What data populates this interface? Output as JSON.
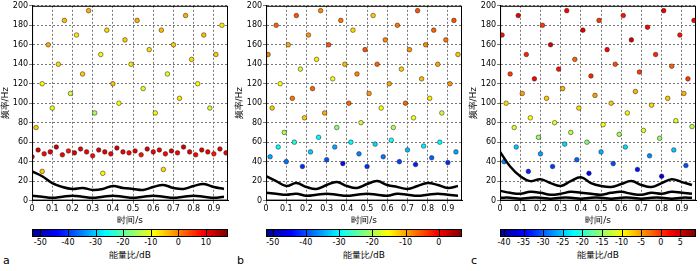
{
  "chart_data": [
    {
      "type": "scatter",
      "label": "a",
      "xlabel": "时间/s",
      "ylabel": "频率/Hz",
      "grid": true,
      "xlim": [
        0,
        0.97
      ],
      "xticks": [
        0,
        0.1,
        0.2,
        0.3,
        0.4,
        0.5,
        0.6,
        0.7,
        0.8,
        0.9
      ],
      "ylim": [
        0,
        200
      ],
      "yticks": [
        0,
        20,
        40,
        60,
        80,
        100,
        120,
        140,
        160,
        180,
        200
      ],
      "colorbar": {
        "label": "能量比/dB",
        "range": [
          -53,
          18
        ],
        "ticks": [
          -50,
          -40,
          -30,
          -20,
          -10,
          0,
          10
        ]
      },
      "points": {
        "x": [
          0,
          0.03,
          0.06,
          0.09,
          0.12,
          0.15,
          0.18,
          0.21,
          0.24,
          0.27,
          0.3,
          0.33,
          0.36,
          0.39,
          0.42,
          0.45,
          0.48,
          0.51,
          0.54,
          0.57,
          0.6,
          0.63,
          0.66,
          0.69,
          0.72,
          0.75,
          0.78,
          0.81,
          0.84,
          0.87,
          0.9,
          0.93,
          0.96,
          0.02,
          0.05,
          0.08,
          0.1,
          0.13,
          0.16,
          0.19,
          0.22,
          0.25,
          0.28,
          0.31,
          0.34,
          0.37,
          0.4,
          0.43,
          0.46,
          0.49,
          0.52,
          0.55,
          0.58,
          0.61,
          0.64,
          0.67,
          0.7,
          0.73,
          0.76,
          0.79,
          0.82,
          0.85,
          0.88,
          0.91,
          0.94,
          0.05,
          0.35,
          0.65
        ],
        "y": [
          45,
          52,
          48,
          50,
          55,
          47,
          51,
          49,
          53,
          50,
          46,
          52,
          50,
          48,
          54,
          50,
          49,
          51,
          47,
          53,
          50,
          52,
          48,
          51,
          49,
          55,
          50,
          47,
          52,
          50,
          48,
          53,
          49,
          75,
          120,
          160,
          95,
          140,
          185,
          110,
          170,
          130,
          195,
          90,
          150,
          175,
          120,
          100,
          165,
          140,
          185,
          115,
          155,
          90,
          175,
          130,
          160,
          105,
          190,
          145,
          120,
          170,
          95,
          150,
          180,
          30,
          28,
          32
        ],
        "values": [
          10,
          12,
          9,
          11,
          13,
          10,
          8,
          12,
          11,
          10,
          9,
          12,
          11,
          10,
          13,
          10,
          9,
          11,
          8,
          12,
          10,
          11,
          9,
          12,
          10,
          13,
          11,
          9,
          12,
          10,
          8,
          11,
          10,
          -5,
          -8,
          -3,
          -10,
          -6,
          -4,
          -12,
          -7,
          -5,
          -3,
          -15,
          -8,
          -6,
          -4,
          -9,
          -5,
          -7,
          -3,
          -11,
          -6,
          -8,
          -4,
          -10,
          -5,
          -7,
          -3,
          -6,
          -9,
          -4,
          -12,
          -5,
          -7,
          -5,
          -8,
          -6
        ]
      },
      "lines": [
        {
          "color": "#000000",
          "x": [
            0,
            0.05,
            0.1,
            0.15,
            0.2,
            0.25,
            0.3,
            0.35,
            0.4,
            0.45,
            0.5,
            0.55,
            0.6,
            0.65,
            0.7,
            0.75,
            0.8,
            0.85,
            0.9,
            0.95
          ],
          "y": [
            30,
            25,
            18,
            14,
            12,
            13,
            11,
            12,
            15,
            13,
            12,
            11,
            14,
            16,
            13,
            12,
            15,
            17,
            14,
            12
          ]
        },
        {
          "color": "#000000",
          "x": [
            0,
            0.05,
            0.1,
            0.15,
            0.2,
            0.25,
            0.3,
            0.35,
            0.4,
            0.45,
            0.5,
            0.55,
            0.6,
            0.65,
            0.7,
            0.75,
            0.8,
            0.85,
            0.9,
            0.95
          ],
          "y": [
            5,
            4,
            3,
            4,
            5,
            4,
            3,
            4,
            5,
            4,
            3,
            4,
            5,
            4,
            3,
            4,
            5,
            4,
            3,
            4
          ]
        }
      ]
    },
    {
      "type": "scatter",
      "label": "b",
      "xlabel": "时间/s",
      "ylabel": "频率/Hz",
      "grid": true,
      "xlim": [
        0,
        0.97
      ],
      "xticks": [
        0,
        0.1,
        0.2,
        0.3,
        0.4,
        0.5,
        0.6,
        0.7,
        0.8,
        0.9
      ],
      "ylim": [
        0,
        200
      ],
      "yticks": [
        0,
        20,
        40,
        60,
        80,
        100,
        120,
        140,
        160,
        180,
        200
      ],
      "colorbar": {
        "label": "能量比/dB",
        "range": [
          -52,
          7
        ],
        "ticks": [
          -50,
          -40,
          -30,
          -20,
          -10,
          0
        ]
      },
      "points": {
        "x": [
          0.01,
          0.03,
          0.05,
          0.07,
          0.09,
          0.11,
          0.13,
          0.15,
          0.17,
          0.19,
          0.21,
          0.23,
          0.25,
          0.27,
          0.29,
          0.31,
          0.33,
          0.35,
          0.37,
          0.39,
          0.41,
          0.43,
          0.45,
          0.47,
          0.49,
          0.51,
          0.53,
          0.55,
          0.57,
          0.59,
          0.61,
          0.63,
          0.65,
          0.67,
          0.69,
          0.71,
          0.73,
          0.75,
          0.77,
          0.79,
          0.81,
          0.83,
          0.85,
          0.87,
          0.89,
          0.91,
          0.93,
          0.95,
          0.02,
          0.06,
          0.1,
          0.14,
          0.18,
          0.22,
          0.26,
          0.3,
          0.34,
          0.38,
          0.42,
          0.46,
          0.5,
          0.54,
          0.58,
          0.62,
          0.66,
          0.7,
          0.74,
          0.78,
          0.82,
          0.86,
          0.9,
          0.94
        ],
        "y": [
          150,
          95,
          180,
          120,
          70,
          160,
          105,
          190,
          135,
          85,
          170,
          115,
          145,
          195,
          90,
          160,
          125,
          75,
          185,
          140,
          100,
          175,
          130,
          80,
          155,
          110,
          190,
          140,
          95,
          165,
          120,
          75,
          180,
          135,
          100,
          155,
          85,
          195,
          125,
          160,
          105,
          175,
          140,
          90,
          165,
          120,
          185,
          150,
          45,
          55,
          40,
          60,
          35,
          50,
          65,
          42,
          55,
          38,
          60,
          48,
          35,
          58,
          45,
          62,
          40,
          52,
          37,
          56,
          44,
          60,
          39,
          50
        ],
        "values": [
          -8,
          -12,
          -6,
          -15,
          -20,
          -10,
          -7,
          -5,
          -18,
          -12,
          -9,
          -6,
          -14,
          -8,
          -10,
          -5,
          -16,
          -22,
          -7,
          -11,
          -6,
          -13,
          -8,
          -18,
          -5,
          -9,
          -12,
          -6,
          -15,
          -8,
          -10,
          -20,
          -7,
          -12,
          -6,
          -9,
          -16,
          -5,
          -11,
          -8,
          -14,
          -6,
          -10,
          -18,
          -7,
          -9,
          -5,
          -12,
          -35,
          -30,
          -38,
          -28,
          -42,
          -33,
          -30,
          -40,
          -35,
          -44,
          -30,
          -37,
          -42,
          -32,
          -38,
          -29,
          -41,
          -34,
          -43,
          -31,
          -39,
          -30,
          -42,
          -35
        ]
      },
      "lines": [
        {
          "color": "#000000",
          "x": [
            0,
            0.05,
            0.1,
            0.15,
            0.2,
            0.25,
            0.3,
            0.35,
            0.4,
            0.45,
            0.5,
            0.55,
            0.6,
            0.65,
            0.7,
            0.75,
            0.8,
            0.85,
            0.9,
            0.95
          ],
          "y": [
            25,
            20,
            15,
            18,
            14,
            12,
            16,
            19,
            15,
            13,
            17,
            20,
            16,
            14,
            12,
            15,
            18,
            16,
            13,
            15
          ]
        },
        {
          "color": "#000000",
          "x": [
            0,
            0.05,
            0.1,
            0.15,
            0.2,
            0.25,
            0.3,
            0.35,
            0.4,
            0.45,
            0.5,
            0.55,
            0.6,
            0.65,
            0.7,
            0.75,
            0.8,
            0.85,
            0.9,
            0.95
          ],
          "y": [
            8,
            7,
            6,
            7,
            5,
            6,
            7,
            6,
            5,
            6,
            7,
            6,
            5,
            7,
            6,
            5,
            6,
            7,
            6,
            5
          ]
        }
      ]
    },
    {
      "type": "scatter",
      "label": "c",
      "xlabel": "时间/s",
      "ylabel": "频率/Hz",
      "grid": true,
      "xlim": [
        0,
        0.97
      ],
      "xticks": [
        0,
        0.1,
        0.2,
        0.3,
        0.4,
        0.5,
        0.6,
        0.7,
        0.8,
        0.9
      ],
      "ylim": [
        0,
        200
      ],
      "yticks": [
        0,
        20,
        40,
        60,
        80,
        100,
        120,
        140,
        160,
        180,
        200
      ],
      "colorbar": {
        "label": "能量比/dB",
        "range": [
          -41,
          9
        ],
        "ticks": [
          -40,
          -35,
          -30,
          -25,
          -20,
          -15,
          -10,
          -5,
          0,
          5
        ]
      },
      "points": {
        "x": [
          0.01,
          0.05,
          0.09,
          0.13,
          0.17,
          0.21,
          0.25,
          0.29,
          0.33,
          0.37,
          0.41,
          0.45,
          0.49,
          0.53,
          0.57,
          0.61,
          0.65,
          0.69,
          0.73,
          0.77,
          0.81,
          0.85,
          0.89,
          0.93,
          0.96,
          0.03,
          0.07,
          0.11,
          0.15,
          0.19,
          0.23,
          0.27,
          0.31,
          0.35,
          0.39,
          0.43,
          0.47,
          0.51,
          0.55,
          0.59,
          0.63,
          0.67,
          0.71,
          0.75,
          0.79,
          0.83,
          0.87,
          0.91,
          0.95,
          0.02,
          0.08,
          0.14,
          0.2,
          0.26,
          0.32,
          0.38,
          0.44,
          0.5,
          0.56,
          0.62,
          0.68,
          0.74,
          0.8,
          0.86,
          0.92
        ],
        "y": [
          170,
          130,
          190,
          150,
          125,
          180,
          160,
          135,
          195,
          145,
          175,
          128,
          185,
          155,
          140,
          190,
          165,
          132,
          178,
          150,
          195,
          138,
          170,
          125,
          185,
          100,
          75,
          110,
          85,
          65,
          105,
          80,
          115,
          70,
          95,
          60,
          108,
          78,
          100,
          68,
          90,
          112,
          72,
          98,
          64,
          105,
          82,
          110,
          76,
          40,
          55,
          30,
          48,
          35,
          58,
          42,
          28,
          50,
          38,
          55,
          32,
          46,
          25,
          52,
          36
        ],
        "values": [
          2,
          0,
          4,
          1,
          3,
          0,
          5,
          2,
          3,
          -2,
          4,
          1,
          0,
          3,
          -1,
          2,
          5,
          0,
          3,
          1,
          4,
          -2,
          2,
          0,
          3,
          -8,
          -12,
          -5,
          -10,
          -15,
          -7,
          -11,
          -6,
          -13,
          -8,
          -16,
          -5,
          -10,
          -7,
          -14,
          -9,
          -6,
          -12,
          -8,
          -15,
          -7,
          -11,
          -6,
          -13,
          -28,
          -25,
          -33,
          -27,
          -32,
          -24,
          -30,
          -35,
          -26,
          -31,
          -24,
          -34,
          -28,
          -36,
          -25,
          -31
        ]
      },
      "lines": [
        {
          "color": "#000000",
          "x": [
            0,
            0.05,
            0.1,
            0.15,
            0.2,
            0.25,
            0.3,
            0.35,
            0.4,
            0.45,
            0.5,
            0.55,
            0.6,
            0.65,
            0.7,
            0.75,
            0.8,
            0.85,
            0.9,
            0.95
          ],
          "y": [
            50,
            35,
            25,
            20,
            22,
            18,
            15,
            20,
            24,
            18,
            15,
            14,
            17,
            20,
            16,
            14,
            18,
            22,
            19,
            16
          ]
        },
        {
          "color": "#000000",
          "x": [
            0,
            0.05,
            0.1,
            0.15,
            0.2,
            0.25,
            0.3,
            0.35,
            0.4,
            0.45,
            0.5,
            0.55,
            0.6,
            0.65,
            0.7,
            0.75,
            0.8,
            0.85,
            0.9,
            0.95
          ],
          "y": [
            10,
            8,
            7,
            9,
            8,
            6,
            7,
            9,
            8,
            7,
            6,
            8,
            9,
            7,
            6,
            8,
            7,
            9,
            8,
            7
          ]
        },
        {
          "color": "#000000",
          "x": [
            0,
            0.05,
            0.1,
            0.15,
            0.2,
            0.25,
            0.3,
            0.35,
            0.4,
            0.45,
            0.5,
            0.55,
            0.6,
            0.65,
            0.7,
            0.75,
            0.8,
            0.85,
            0.9,
            0.95
          ],
          "y": [
            3,
            3,
            2,
            3,
            3,
            2,
            3,
            3,
            2,
            3,
            3,
            2,
            3,
            3,
            2,
            3,
            3,
            2,
            3,
            3
          ]
        }
      ]
    }
  ]
}
